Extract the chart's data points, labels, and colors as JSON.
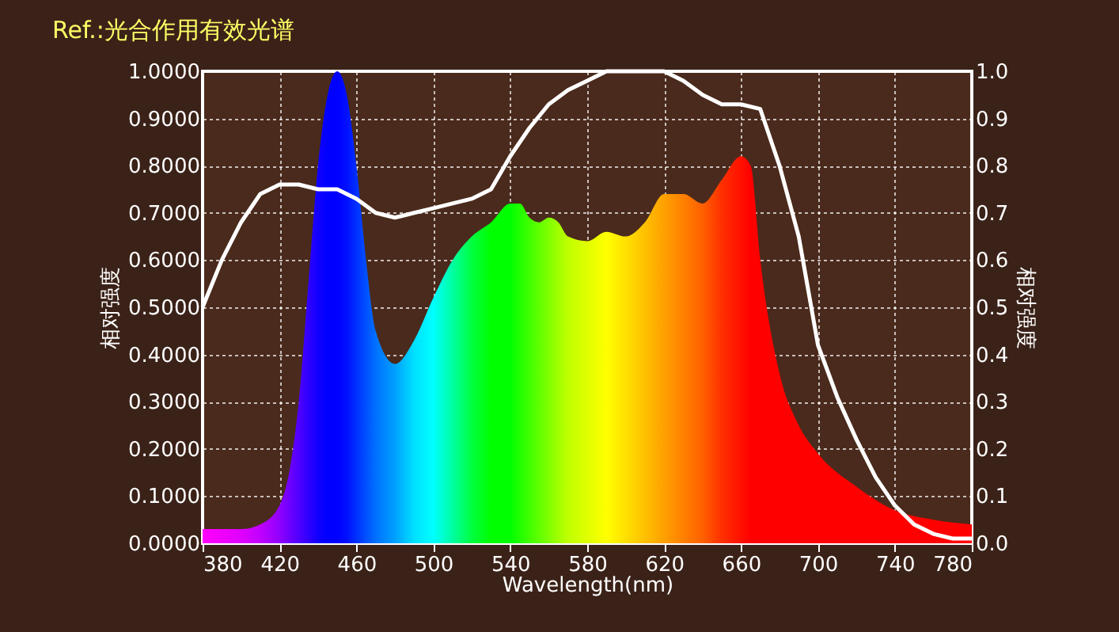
{
  "chart_data": {
    "type": "area",
    "title": "Ref.:光合作用有效光谱",
    "xlabel": "Wavelength(nm)",
    "ylabel": "相对强度",
    "y2label": "相对强度",
    "xlim": [
      380,
      780
    ],
    "xticks": [
      380,
      420,
      460,
      500,
      540,
      580,
      620,
      660,
      700,
      740,
      780
    ],
    "ylim": [
      0,
      1
    ],
    "yticks": [
      {
        "value": 0,
        "label": "0.0000"
      },
      {
        "value": 0.1,
        "label": "0.1000"
      },
      {
        "value": 0.2,
        "label": "0.2000"
      },
      {
        "value": 0.3,
        "label": "0.3000"
      },
      {
        "value": 0.4,
        "label": "0.4000"
      },
      {
        "value": 0.5,
        "label": "0.5000"
      },
      {
        "value": 0.6,
        "label": "0.6000"
      },
      {
        "value": 0.7,
        "label": "0.7000"
      },
      {
        "value": 0.8,
        "label": "0.8000"
      },
      {
        "value": 0.9,
        "label": "0.9000"
      },
      {
        "value": 1,
        "label": "1.0000"
      }
    ],
    "y2lim": [
      0,
      1
    ],
    "y2ticks": [
      {
        "value": 0,
        "label": "0.0"
      },
      {
        "value": 0.1,
        "label": "0.1"
      },
      {
        "value": 0.2,
        "label": "0.2"
      },
      {
        "value": 0.3,
        "label": "0.3"
      },
      {
        "value": 0.4,
        "label": "0.4"
      },
      {
        "value": 0.5,
        "label": "0.5"
      },
      {
        "value": 0.6,
        "label": "0.6"
      },
      {
        "value": 0.7,
        "label": "0.7"
      },
      {
        "value": 0.8,
        "label": "0.8"
      },
      {
        "value": 0.9,
        "label": "0.9"
      },
      {
        "value": 1,
        "label": "1.0"
      }
    ],
    "grid": true,
    "series": [
      {
        "x": [
          380,
          400,
          410,
          420,
          425,
          430,
          435,
          440,
          445,
          450,
          455,
          460,
          465,
          470,
          480,
          490,
          500,
          510,
          520,
          530,
          540,
          545,
          550,
          555,
          560,
          565,
          570,
          580,
          590,
          600,
          610,
          620,
          630,
          640,
          650,
          660,
          665,
          670,
          680,
          690,
          700,
          720,
          740,
          760,
          780
        ],
        "values": [
          0.03,
          0.03,
          0.04,
          0.08,
          0.15,
          0.3,
          0.55,
          0.8,
          0.95,
          1.0,
          0.95,
          0.8,
          0.6,
          0.45,
          0.38,
          0.43,
          0.52,
          0.6,
          0.65,
          0.68,
          0.72,
          0.72,
          0.69,
          0.68,
          0.69,
          0.68,
          0.65,
          0.64,
          0.66,
          0.65,
          0.68,
          0.74,
          0.74,
          0.72,
          0.77,
          0.82,
          0.8,
          0.6,
          0.36,
          0.25,
          0.19,
          0.12,
          0.07,
          0.05,
          0.04
        ],
        "colors": [
          "#ff00ff",
          "#e000ff",
          "#c000ff",
          "#9000ff",
          "#7000ff",
          "#5000ff",
          "#3000ff",
          "#1000ff",
          "#0000ff",
          "#0000ff",
          "#0010ff",
          "#0030ff",
          "#0050ff",
          "#0070ff",
          "#00a0ff",
          "#00e0ff",
          "#00ffff",
          "#00ffa0",
          "#00ff40",
          "#00ff00",
          "#00ff00",
          "#20ff00",
          "#40ff00",
          "#60ff00",
          "#80ff00",
          "#a0ff00",
          "#c0ff00",
          "#e0ff00",
          "#ffff00",
          "#ffe000",
          "#ffc000",
          "#ffa000",
          "#ff8000",
          "#ff6000",
          "#ff3000",
          "#ff1000",
          "#ff0000",
          "#ff0000",
          "#ff0000",
          "#ff0000",
          "#ff0000",
          "#ff0000",
          "#ff0000",
          "#ff0000",
          "#ff0000"
        ]
      },
      {
        "type": "line",
        "axis": "y2",
        "color": "#ffffff",
        "x": [
          380,
          390,
          400,
          410,
          420,
          430,
          440,
          450,
          460,
          470,
          480,
          490,
          500,
          510,
          520,
          530,
          540,
          550,
          560,
          570,
          580,
          590,
          600,
          610,
          620,
          630,
          640,
          650,
          660,
          670,
          680,
          690,
          700,
          710,
          720,
          730,
          740,
          750,
          760,
          770,
          780
        ],
        "values": [
          0.5,
          0.6,
          0.68,
          0.74,
          0.76,
          0.76,
          0.75,
          0.75,
          0.73,
          0.7,
          0.69,
          0.7,
          0.71,
          0.72,
          0.73,
          0.75,
          0.82,
          0.88,
          0.93,
          0.96,
          0.98,
          1.0,
          1.0,
          1.0,
          1.0,
          0.98,
          0.95,
          0.93,
          0.93,
          0.92,
          0.8,
          0.65,
          0.42,
          0.31,
          0.22,
          0.14,
          0.08,
          0.04,
          0.02,
          0.01,
          0.01
        ]
      }
    ]
  }
}
